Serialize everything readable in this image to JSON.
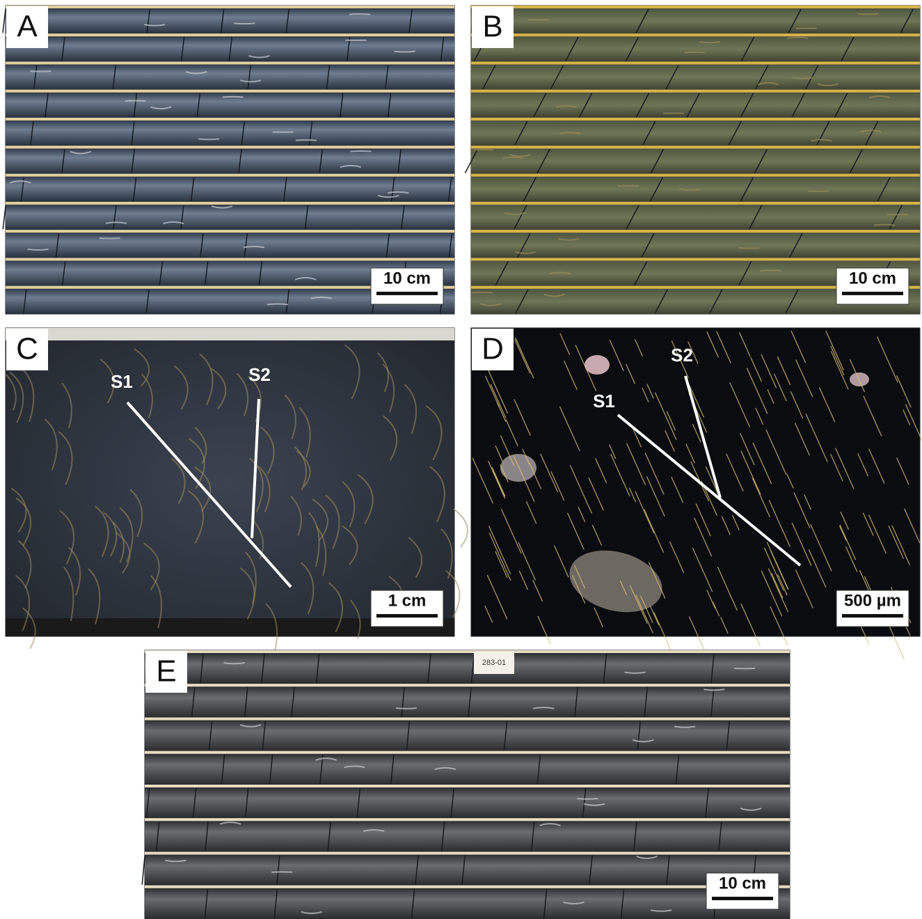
{
  "panels": [
    {
      "label": "A",
      "scale_bar": "10 cm"
    },
    {
      "label": "B",
      "scale_bar": "10 cm"
    },
    {
      "label": "C",
      "scale_bar": "1 cm",
      "annotations": [
        "S1",
        "S2"
      ]
    },
    {
      "label": "D",
      "scale_bar": "500 µm",
      "annotations": [
        "S1",
        "S2"
      ]
    },
    {
      "label": "E",
      "scale_bar": "10 cm",
      "tag": "283-01"
    }
  ]
}
